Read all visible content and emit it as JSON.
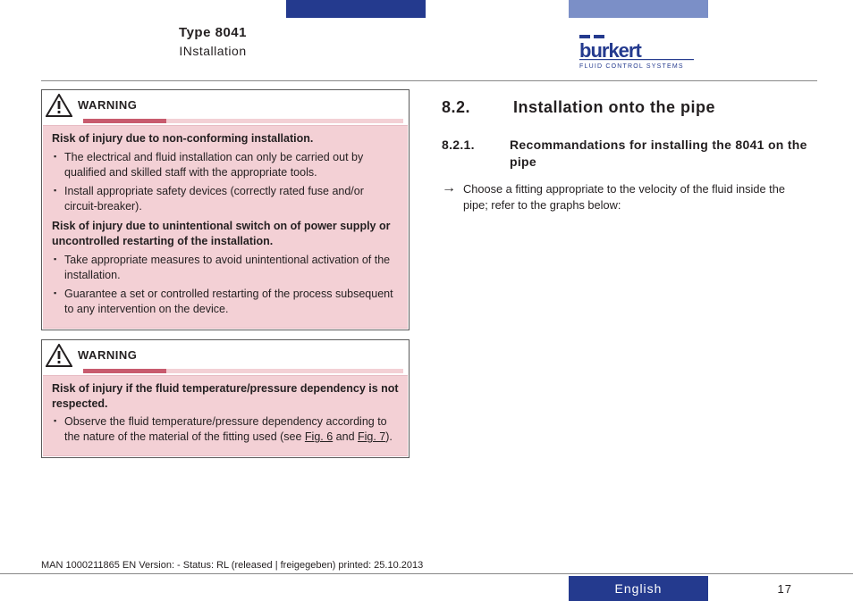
{
  "header": {
    "type_line": "Type 8041",
    "section_line": "INstallation",
    "logo": {
      "brand": "burkert",
      "tagline": "FLUID CONTROL SYSTEMS"
    }
  },
  "warnings": [
    {
      "label": "WARNING",
      "groups": [
        {
          "risk": "Risk of injury due to non-conforming installation.",
          "bullets": [
            "The electrical and fluid installation can only be carried out by qualified and skilled staff with the appropriate tools.",
            "Install appropriate safety devices (correctly rated fuse and/or circuit-breaker)."
          ]
        },
        {
          "risk": "Risk of injury due to unintentional switch on of power supply or uncontrolled restarting of the installation.",
          "bullets": [
            "Take appropriate measures to avoid unintentional activation of the installation.",
            "Guarantee a set or controlled restarting of the process subsequent to any intervention on the device."
          ]
        }
      ]
    },
    {
      "label": "WARNING",
      "groups": [
        {
          "risk": "Risk of injury if the fluid temperature/pressure dependency is not respected.",
          "bullets_html": [
            "Observe the fluid temperature/pressure dependency according to the nature of the material of the fitting used (see <span class=\"fig-link\">Fig. 6</span> and <span class=\"fig-link\">Fig. 7</span>)."
          ]
        }
      ]
    }
  ],
  "right": {
    "h2": {
      "num": "8.2.",
      "text": "Installation onto the pipe"
    },
    "h3": {
      "num": "8.2.1.",
      "text": "Recommandations for installing the 8041 on the pipe"
    },
    "arrow_text": "Choose a fitting appropriate to the velocity of the fluid inside the pipe; refer to the graphs below:"
  },
  "footer": {
    "meta": "MAN 1000211865 EN Version: - Status: RL (released | freigegeben) printed: 25.10.2013",
    "language": "English",
    "page": "17"
  },
  "colors": {
    "brand_blue": "#243a8e",
    "tab_light": "#7b8fc7",
    "warning_bg": "#f3d0d5",
    "warning_bar_dark": "#c85b6e",
    "text": "#231f20"
  }
}
